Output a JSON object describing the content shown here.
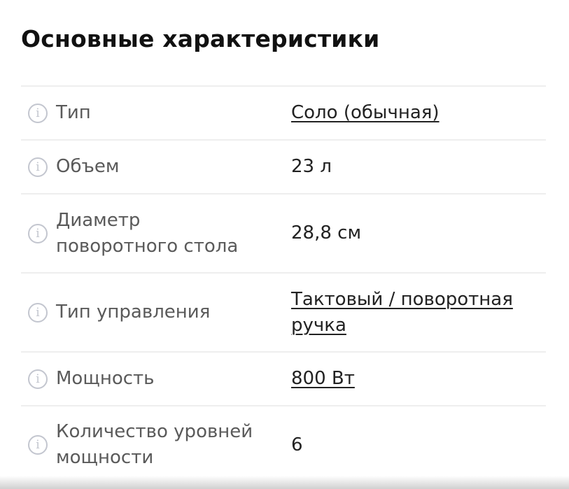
{
  "title": "Основные характеристики",
  "rows": [
    {
      "label": "Тип",
      "value": "Соло (обычная)",
      "link": true
    },
    {
      "label": "Объем",
      "value": "23 л",
      "link": false
    },
    {
      "label": "Диаметр поворотного стола",
      "value": "28,8 см",
      "link": false
    },
    {
      "label": "Тип управления",
      "value": "Тактовый / поворотная ручка",
      "link": true
    },
    {
      "label": "Мощность",
      "value": "800 Вт",
      "link": true
    },
    {
      "label": "Количество уровней мощности",
      "value": "6",
      "link": false
    }
  ],
  "icon": "info-icon"
}
